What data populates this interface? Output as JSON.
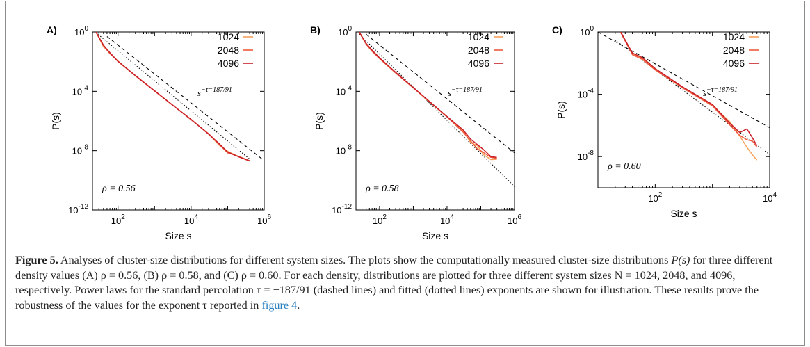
{
  "chart_data": [
    {
      "type": "line",
      "panel_label": "A)",
      "xlabel": "Size s",
      "ylabel": "P(s)",
      "x_scale": "log",
      "y_scale": "log",
      "xlim": [
        20,
        1000000
      ],
      "ylim": [
        1e-12,
        1
      ],
      "x_ticks": [
        100,
        10000,
        1000000
      ],
      "x_tick_labels": [
        [
          "10",
          "2"
        ],
        [
          "10",
          "4"
        ],
        [
          "10",
          "6"
        ]
      ],
      "y_ticks": [
        1,
        0.0001,
        1e-08,
        1e-12
      ],
      "y_tick_labels": [
        [
          "10",
          "0"
        ],
        [
          "10",
          "-4"
        ],
        [
          "10",
          "-8"
        ],
        [
          "10",
          "-12"
        ]
      ],
      "annotation": "ρ = 0.56",
      "power_law_label": [
        "s",
        "−τ=187/91"
      ],
      "legend": [
        "1024",
        "2048",
        "4096"
      ],
      "series": [
        {
          "name": "1024",
          "color": "#f7a25c",
          "x": [
            25,
            40,
            60,
            100,
            300,
            1000,
            3000,
            10000,
            30000,
            60000,
            100000,
            200000,
            400000
          ],
          "y": [
            1,
            0.1,
            0.04,
            0.01,
            0.00112,
            0.000108,
            1.27e-05,
            1.25e-06,
            1.33e-07,
            2.2e-08,
            9.2e-09,
            3.9e-09,
            2e-09
          ]
        },
        {
          "name": "2048",
          "color": "#ef5a3c",
          "x": [
            25,
            40,
            60,
            100,
            300,
            1000,
            3000,
            10000,
            30000,
            60000,
            100000,
            200000,
            400000
          ],
          "y": [
            0.95,
            0.12,
            0.035,
            0.011,
            0.0011,
            0.000105,
            1.28e-05,
            1.2e-06,
            1.4e-07,
            2.5e-08,
            7.1e-09,
            4.1e-09,
            2.1e-09
          ]
        },
        {
          "name": "4096",
          "color": "#c81e28",
          "x": [
            25,
            40,
            60,
            100,
            300,
            1000,
            3000,
            10000,
            30000,
            60000,
            100000,
            200000,
            400000
          ],
          "y": [
            1,
            0.13,
            0.04,
            0.0105,
            0.00115,
            0.00011,
            1.25e-05,
            1.28e-06,
            1.3e-07,
            2.8e-08,
            8.2e-09,
            3.8e-09,
            2e-09
          ]
        }
      ],
      "dashed_fit": {
        "x": [
          50,
          1000000
        ],
        "y": [
          0.5,
          2.1e-09
        ]
      },
      "dotted_fit": {
        "x": [
          25,
          400000
        ],
        "y": [
          0.9,
          2.7e-09
        ]
      }
    },
    {
      "type": "line",
      "panel_label": "B)",
      "xlabel": "Size s",
      "ylabel": "P(s)",
      "x_scale": "log",
      "y_scale": "log",
      "xlim": [
        20,
        1000000
      ],
      "ylim": [
        1e-12,
        1
      ],
      "x_ticks": [
        100,
        10000,
        1000000
      ],
      "x_tick_labels": [
        [
          "10",
          "2"
        ],
        [
          "10",
          "4"
        ],
        [
          "10",
          "6"
        ]
      ],
      "y_ticks": [
        1,
        0.0001,
        1e-08,
        1e-12
      ],
      "y_tick_labels": [
        [
          "10",
          "0"
        ],
        [
          "10",
          "-4"
        ],
        [
          "10",
          "-8"
        ],
        [
          "10",
          "-12"
        ]
      ],
      "annotation": "ρ = 0.58",
      "power_law_label": [
        "s",
        "−τ=187/91"
      ],
      "legend": [
        "1024",
        "2048",
        "4096"
      ],
      "series": [
        {
          "name": "1024",
          "color": "#f7a25c",
          "x": [
            25,
            40,
            60,
            100,
            300,
            1000,
            3000,
            10000,
            30000,
            50000,
            80000,
            120000,
            200000,
            300000
          ],
          "y": [
            1,
            0.16,
            0.055,
            0.017,
            0.0018,
            0.000175,
            1.95e-05,
            1.9e-06,
            2.2e-07,
            3.5e-08,
            2.2e-08,
            5.5e-09,
            2.5e-09,
            2.6e-09
          ]
        },
        {
          "name": "2048",
          "color": "#ef5a3c",
          "x": [
            25,
            40,
            60,
            100,
            300,
            1000,
            3000,
            10000,
            30000,
            50000,
            80000,
            120000,
            200000,
            300000
          ],
          "y": [
            0.95,
            0.15,
            0.05,
            0.016,
            0.0017,
            0.00017,
            2e-05,
            1.9e-06,
            1.8e-07,
            4.5e-08,
            1.3e-08,
            7.5e-09,
            3.5e-09,
            3e-09
          ]
        },
        {
          "name": "4096",
          "color": "#c81e28",
          "x": [
            25,
            40,
            60,
            100,
            300,
            1000,
            3000,
            10000,
            30000,
            50000,
            80000,
            120000,
            200000,
            300000
          ],
          "y": [
            1,
            0.17,
            0.06,
            0.018,
            0.0019,
            0.00018,
            2.1e-05,
            2e-06,
            2.5e-07,
            6e-08,
            2.5e-08,
            1.2e-08,
            4e-09,
            3.5e-09
          ]
        }
      ],
      "dashed_fit": {
        "x": [
          40,
          1000000
        ],
        "y": [
          0.7,
          7.1e-09
        ]
      },
      "dotted_fit": {
        "x": [
          25,
          1000000
        ],
        "y": [
          0.72,
          3.8e-11
        ]
      }
    },
    {
      "type": "line",
      "panel_label": "C)",
      "xlabel": "Size s",
      "ylabel": "P(s)",
      "x_scale": "log",
      "y_scale": "log",
      "xlim": [
        10,
        10000
      ],
      "ylim": [
        1e-10,
        1
      ],
      "x_ticks": [
        100,
        10000
      ],
      "x_tick_labels": [
        [
          "10",
          "2"
        ],
        [
          "10",
          "4"
        ]
      ],
      "y_ticks": [
        1,
        0.0001,
        1e-08
      ],
      "y_tick_labels": [
        [
          "10",
          "0"
        ],
        [
          "10",
          "-4"
        ],
        [
          "10",
          "-8"
        ]
      ],
      "annotation": "ρ = 0.60",
      "power_law_label": [
        "s",
        "−τ=187/91"
      ],
      "legend": [
        "1024",
        "2048",
        "4096"
      ],
      "series": [
        {
          "name": "1024",
          "color": "#f7a25c",
          "x": [
            25,
            40,
            60,
            100,
            300,
            1000,
            2000,
            3000,
            4000,
            5000,
            6000
          ],
          "y": [
            1,
            0.04,
            0.02,
            0.0042,
            0.00028,
            1.9e-05,
            1.8e-06,
            2.1e-07,
            4e-08,
            1.3e-08,
            6e-09
          ]
        },
        {
          "name": "2048",
          "color": "#ef5a3c",
          "x": [
            25,
            40,
            60,
            100,
            300,
            1000,
            2000,
            3000,
            4000,
            5000,
            6000
          ],
          "y": [
            0.9,
            0.035,
            0.017,
            0.0037,
            0.00026,
            1.8e-05,
            1.1e-06,
            2.3e-07,
            1.2e-07,
            1e-07,
            4e-08
          ]
        },
        {
          "name": "4096",
          "color": "#c81e28",
          "x": [
            25,
            40,
            60,
            100,
            300,
            1000,
            2000,
            3000,
            4000,
            5000,
            6000
          ],
          "y": [
            1,
            0.045,
            0.022,
            0.0045,
            0.0003,
            2.2e-05,
            1.4e-06,
            3.5e-07,
            6e-07,
            1.6e-07,
            5e-08
          ]
        }
      ],
      "dashed_fit": {
        "x": [
          10,
          10000
        ],
        "y": [
          1,
          7.25e-07
        ]
      },
      "dotted_fit": {
        "x": [
          20,
          10000
        ],
        "y": [
          0.3,
          1.36e-08
        ]
      }
    }
  ],
  "caption": {
    "label": "Figure 5.",
    "text_1": " Analyses of cluster-size distributions for different system sizes. The plots show the computationally measured cluster-size distributions ",
    "math_ps": "P(s)",
    "text_2": " for three different density values (A) ρ = 0.56, (B) ρ = 0.58, and (C) ρ = 0.60. For each density, distributions are plotted for three different system sizes N = 1024, 2048, and 4096, respectively. Power laws for the standard percolation τ = −187/91 (dashed lines) and fitted (dotted lines) exponents are shown for illustration. These results prove the robustness of the values for the exponent τ reported in ",
    "ref": "figure 4",
    "text_3": "."
  }
}
